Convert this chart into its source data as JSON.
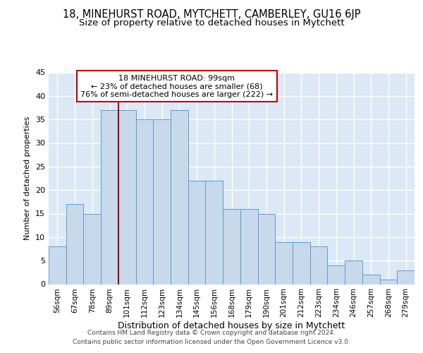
{
  "title1": "18, MINEHURST ROAD, MYTCHETT, CAMBERLEY, GU16 6JP",
  "title2": "Size of property relative to detached houses in Mytchett",
  "xlabel": "Distribution of detached houses by size in Mytchett",
  "ylabel": "Number of detached properties",
  "categories": [
    "56sqm",
    "67sqm",
    "78sqm",
    "89sqm",
    "101sqm",
    "112sqm",
    "123sqm",
    "134sqm",
    "145sqm",
    "156sqm",
    "168sqm",
    "179sqm",
    "190sqm",
    "201sqm",
    "212sqm",
    "223sqm",
    "234sqm",
    "246sqm",
    "257sqm",
    "268sqm",
    "279sqm"
  ],
  "values": [
    8,
    17,
    15,
    37,
    37,
    35,
    35,
    37,
    22,
    22,
    16,
    16,
    15,
    9,
    9,
    8,
    4,
    5,
    2,
    1,
    3
  ],
  "bar_color": "#c9d9ec",
  "bar_edge_color": "#5b9bd5",
  "vline_x_idx": 4,
  "vline_color": "#a00000",
  "annotation_line1": "18 MINEHURST ROAD: 99sqm",
  "annotation_line2": "← 23% of detached houses are smaller (68)",
  "annotation_line3": "76% of semi-detached houses are larger (222) →",
  "annotation_box_color": "#ffffff",
  "annotation_box_edge": "#c00000",
  "ylim": [
    0,
    45
  ],
  "yticks": [
    0,
    5,
    10,
    15,
    20,
    25,
    30,
    35,
    40,
    45
  ],
  "footer1": "Contains HM Land Registry data © Crown copyright and database right 2024.",
  "footer2": "Contains public sector information licensed under the Open Government Licence v3.0.",
  "plot_bg_color": "#dce8f5",
  "fig_bg_color": "#ffffff",
  "grid_color": "#ffffff",
  "title1_fontsize": 10.5,
  "title2_fontsize": 9.5,
  "ylabel_fontsize": 8,
  "xlabel_fontsize": 9,
  "tick_fontsize": 7.5,
  "ytick_fontsize": 8,
  "footer_fontsize": 6.5,
  "annot_fontsize": 8
}
